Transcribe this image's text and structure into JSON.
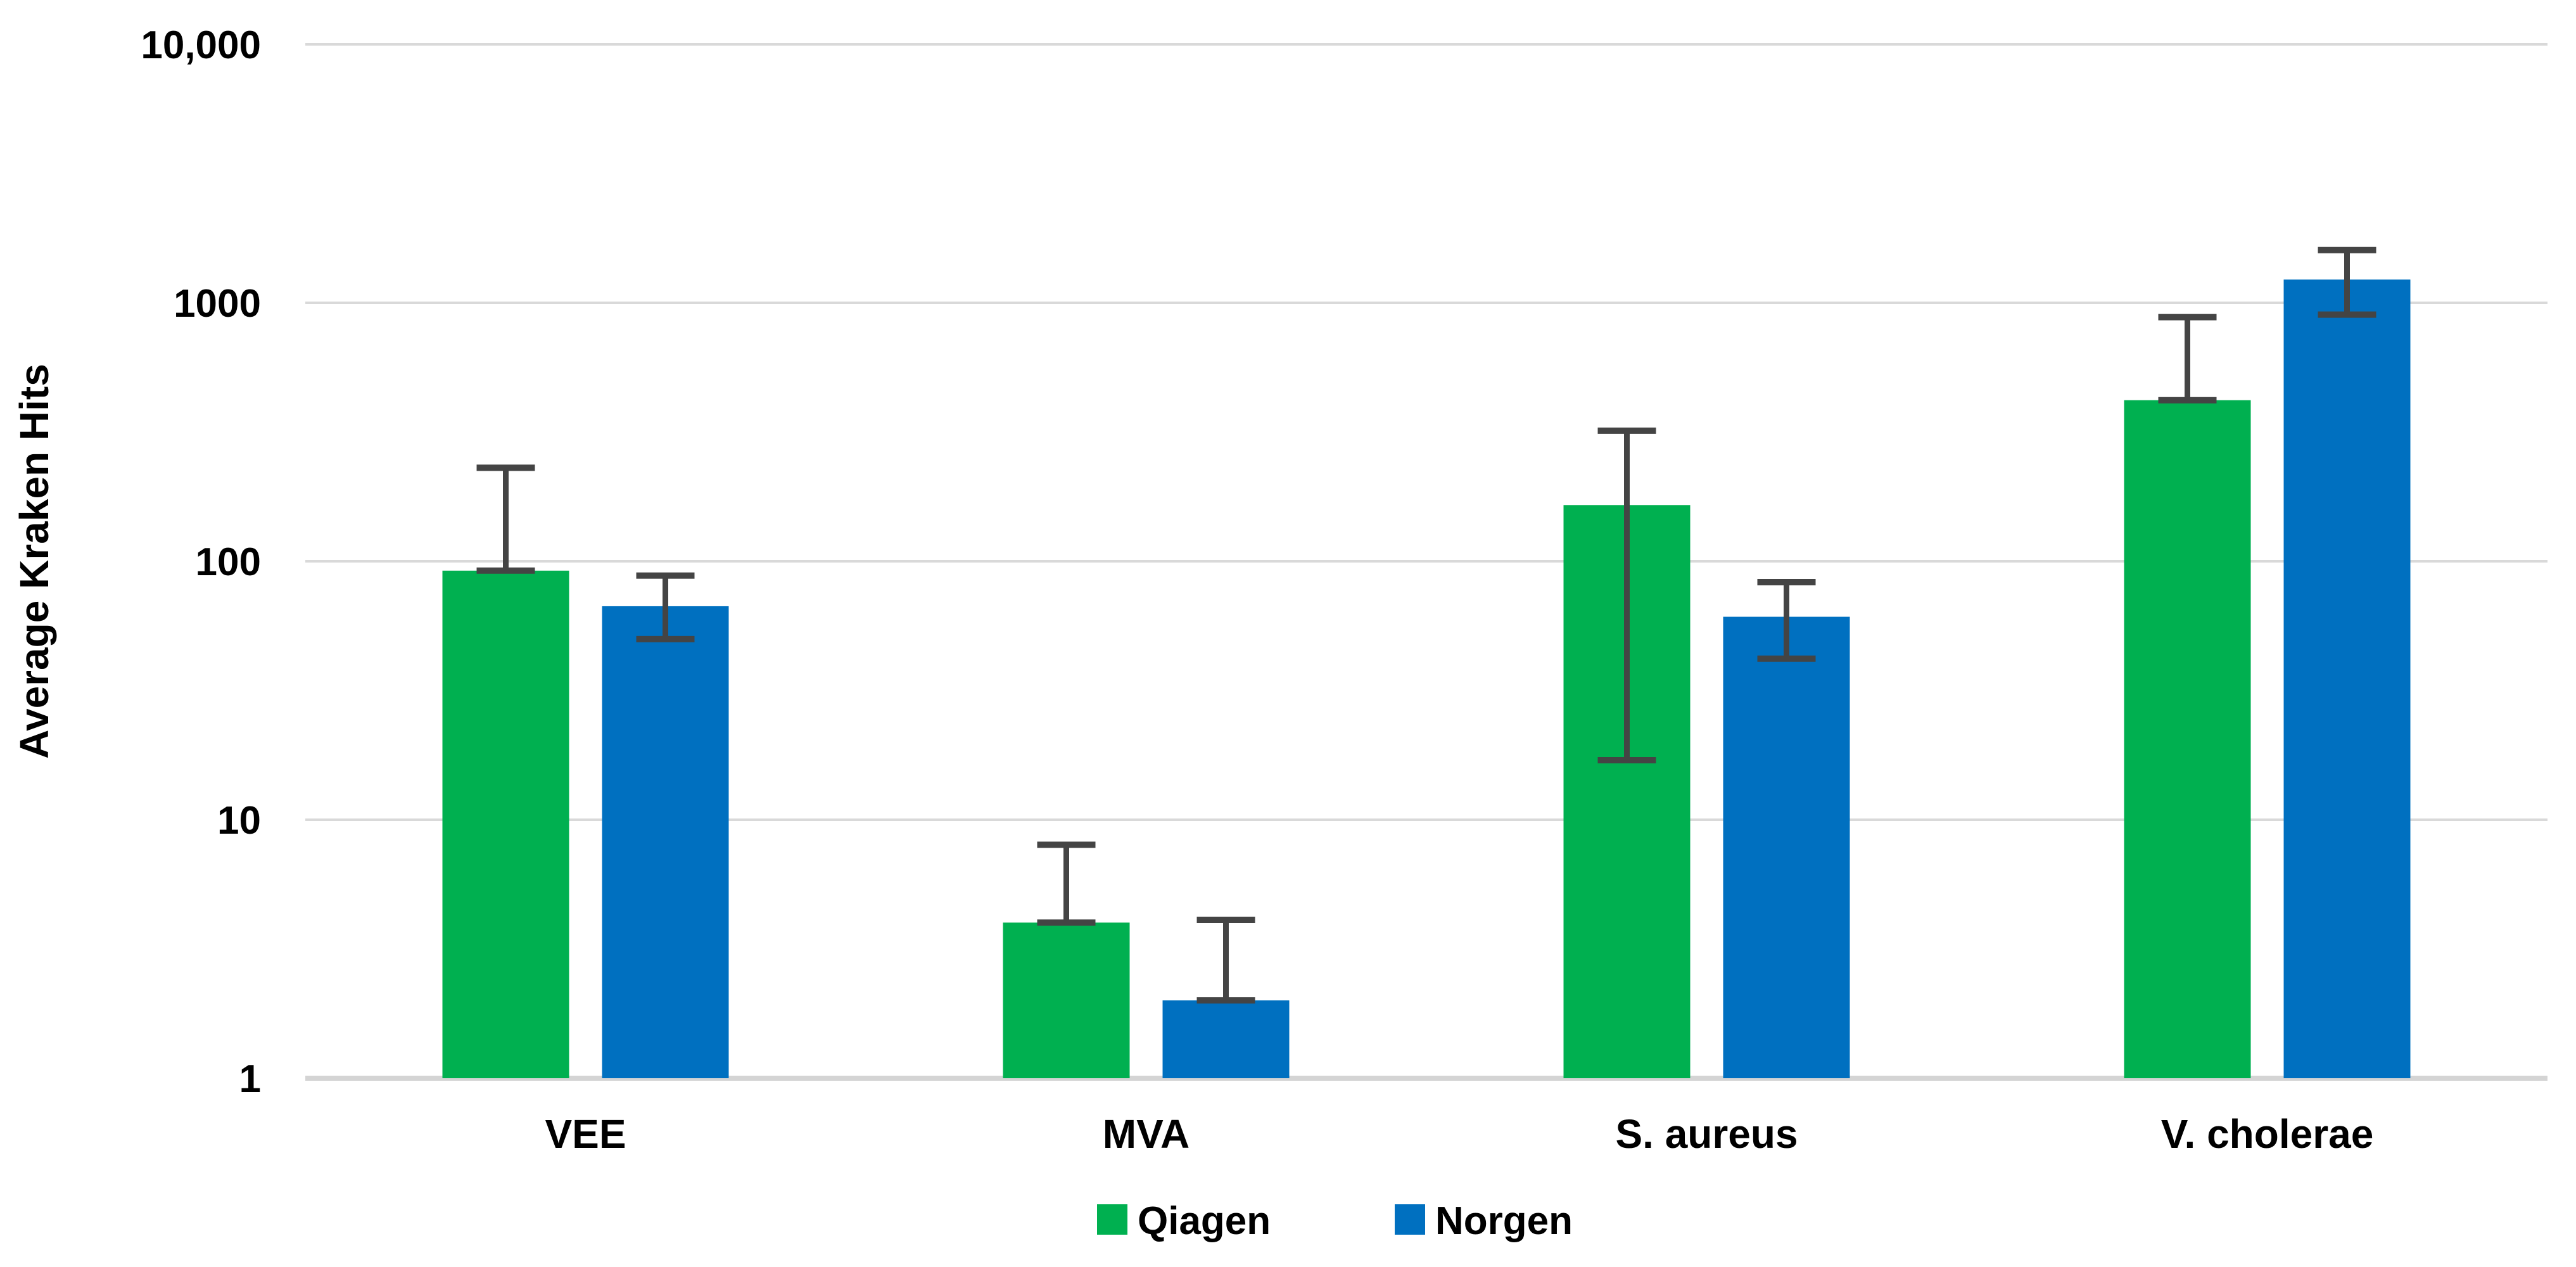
{
  "figure": {
    "background": "#ffffff",
    "description": "Grouped bar chart comparing average Kraken hits for Qiagen and Norgen extraction kits across four organisms, log-scale y-axis with error bars"
  },
  "chart_data": {
    "type": "bar",
    "title": "",
    "xlabel": "",
    "ylabel": "Average Kraken Hits",
    "categories": [
      "VEE",
      "MVA",
      "S. aureus",
      "V. cholerae"
    ],
    "series": [
      {
        "name": "Qiagen",
        "color": "#00B050",
        "values": [
          92,
          4,
          165,
          420
        ],
        "error_low": [
          92,
          4,
          17,
          420
        ],
        "error_high": [
          230,
          8,
          320,
          880
        ]
      },
      {
        "name": "Norgen",
        "color": "#0070C0",
        "values": [
          67,
          2,
          61,
          1230
        ],
        "error_low": [
          50,
          2,
          42,
          900
        ],
        "error_high": [
          88,
          4.1,
          83,
          1600
        ]
      }
    ],
    "y_axis": {
      "scale": "log",
      "min": 1,
      "max": 10000,
      "tick_labels": [
        "1",
        "10",
        "100",
        "1000",
        "10,000"
      ]
    },
    "grid": true,
    "legend_position": "bottom",
    "colors": {
      "gridline": "#d9d9d9",
      "axis_line": "#d4d4d4",
      "error_bar": "#444444",
      "text": "#000000"
    }
  }
}
